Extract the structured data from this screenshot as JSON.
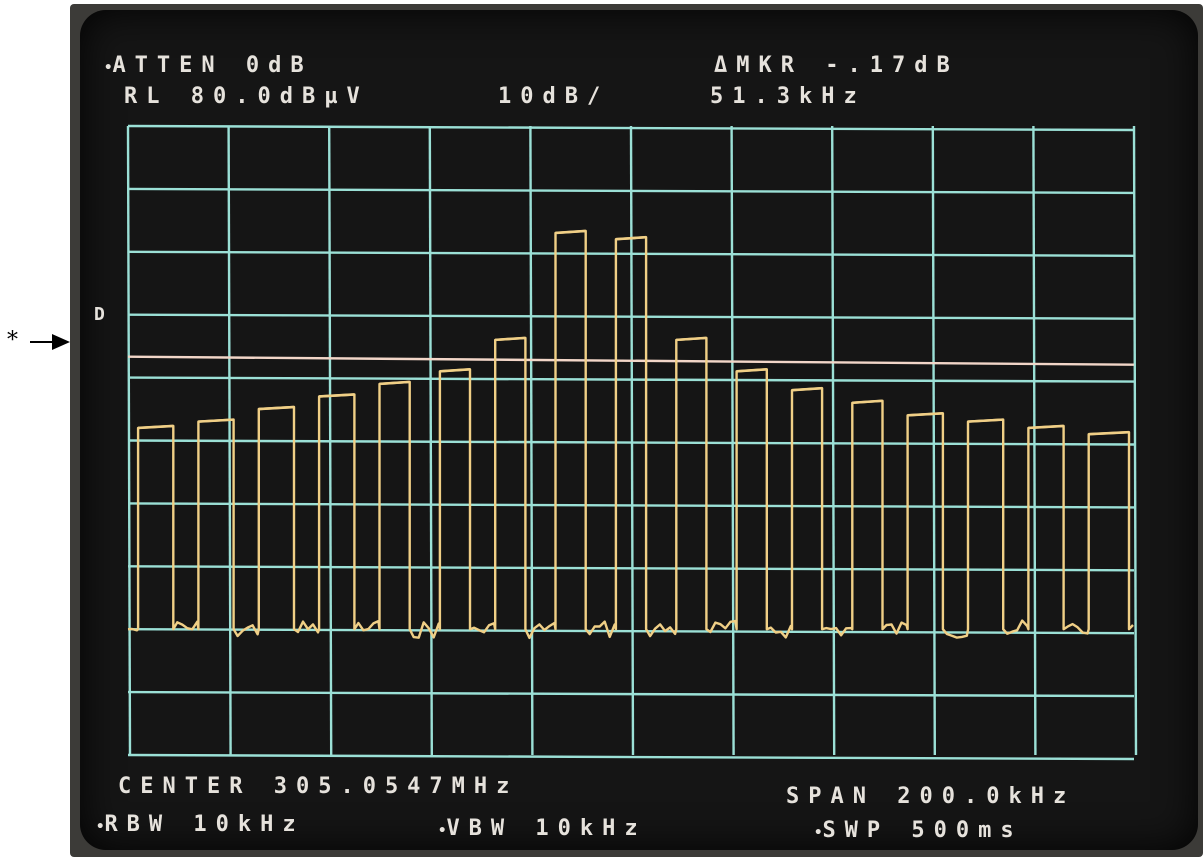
{
  "header": {
    "atten": "ATTEN 0dB",
    "ref_level": "RL 80.0dBµV",
    "scale": "10dB/",
    "delta_marker": "ΔMKR -.17dB",
    "marker_freq": "51.3kHz",
    "display_line_marker": "D"
  },
  "footer": {
    "center": "CENTER 305.0547MHz",
    "span": "SPAN 200.0kHz",
    "rbw": "RBW 10kHz",
    "vbw": "VBW 10kHz",
    "sweep": "SWP 500ms"
  },
  "side_marker": "*",
  "colors": {
    "grid": "#9be0d6",
    "trace": "#f0cf86",
    "display_line": "#f2d6c8",
    "text": "#e6e2dc"
  },
  "chart_data": {
    "type": "line",
    "title": "",
    "xlabel": "",
    "ylabel": "",
    "x_center_mhz": 305.0547,
    "span_khz": 200,
    "xlim_khz": [
      -100,
      100
    ],
    "ylim_dbuv": [
      -20,
      80
    ],
    "grid": true,
    "display_line_dbuv": 43,
    "noise_floor_dbuv": 0,
    "series": [
      {
        "comb_pulses": [
          {
            "start_khz": -98,
            "end_khz": -91,
            "level_dbuv": 32
          },
          {
            "start_khz": -86,
            "end_khz": -79,
            "level_dbuv": 33
          },
          {
            "start_khz": -74,
            "end_khz": -67,
            "level_dbuv": 35
          },
          {
            "start_khz": -62,
            "end_khz": -55,
            "level_dbuv": 37
          },
          {
            "start_khz": -50,
            "end_khz": -44,
            "level_dbuv": 39
          },
          {
            "start_khz": -38,
            "end_khz": -32,
            "level_dbuv": 41
          },
          {
            "start_khz": -27,
            "end_khz": -21,
            "level_dbuv": 46
          },
          {
            "start_khz": -15,
            "end_khz": -9,
            "level_dbuv": 63
          },
          {
            "start_khz": -3,
            "end_khz": 3,
            "level_dbuv": 62
          },
          {
            "start_khz": 9,
            "end_khz": 15,
            "level_dbuv": 46
          },
          {
            "start_khz": 21,
            "end_khz": 27,
            "level_dbuv": 41
          },
          {
            "start_khz": 32,
            "end_khz": 38,
            "level_dbuv": 38
          },
          {
            "start_khz": 44,
            "end_khz": 50,
            "level_dbuv": 36
          },
          {
            "start_khz": 55,
            "end_khz": 62,
            "level_dbuv": 34
          },
          {
            "start_khz": 67,
            "end_khz": 74,
            "level_dbuv": 33
          },
          {
            "start_khz": 79,
            "end_khz": 86,
            "level_dbuv": 32
          },
          {
            "start_khz": 91,
            "end_khz": 99,
            "level_dbuv": 31
          }
        ]
      }
    ]
  }
}
